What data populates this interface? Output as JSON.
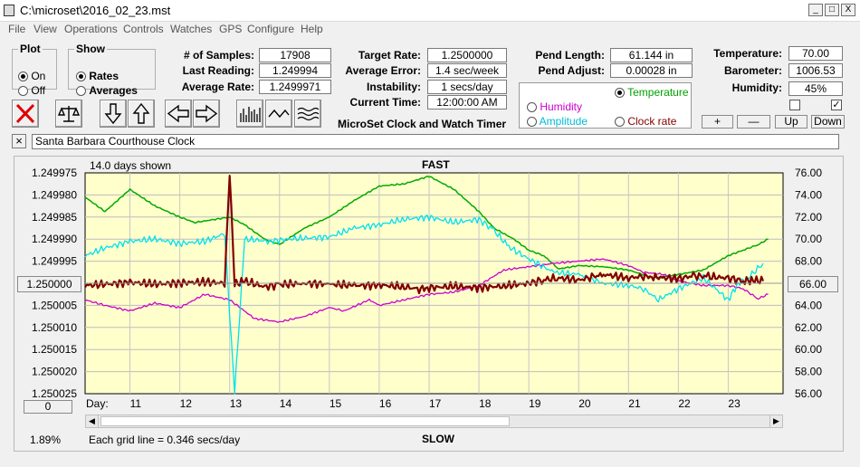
{
  "window": {
    "title": "C:\\microset\\2016_02_23.mst",
    "minimize": "_",
    "maximize": "□",
    "close": "X"
  },
  "menu": [
    "File",
    "View",
    "Operations",
    "Controls",
    "Watches",
    "GPS",
    "Configure",
    "Help"
  ],
  "plot": {
    "legend": "Plot",
    "on": "On",
    "off": "Off",
    "selected": "On"
  },
  "show": {
    "legend": "Show",
    "rates": "Rates",
    "averages": "Averages",
    "selected": "Rates"
  },
  "stats": {
    "samples_label": "# of Samples:",
    "samples": "17908",
    "last_label": "Last Reading:",
    "last": "1.249994",
    "avg_label": "Average Rate:",
    "avg": "1.2499971"
  },
  "targets": {
    "target_label": "Target Rate:",
    "target": "1.2500000",
    "error_label": "Average Error:",
    "error": "1.4 sec/week",
    "instab_label": "Instability:",
    "instab": "1 secs/day",
    "time_label": "Current Time:",
    "time": "12:00:00 AM",
    "caption": "MicroSet Clock and Watch Timer"
  },
  "pend": {
    "length_label": "Pend Length:",
    "length": "61.144 in",
    "adjust_label": "Pend Adjust:",
    "adjust": "0.00028 in"
  },
  "overlay": {
    "temperature": "Temperature",
    "humidity": "Humidity",
    "amplitude": "Amplitude",
    "clock_rate": "Clock rate",
    "selected": "Temperature"
  },
  "env": {
    "temp_label": "Temperature:",
    "temp": "70.00",
    "baro_label": "Barometer:",
    "baro": "1006.53",
    "hum_label": "Humidity:",
    "hum": "45%",
    "plus": "+",
    "minus": "—",
    "up": "Up",
    "down": "Down"
  },
  "clock_name": "Santa Barbara Courthouse Clock",
  "close_x": "×",
  "chart": {
    "days_shown": "14.0 days shown",
    "fast": "FAST",
    "slow": "SLOW",
    "grid_note": "Each grid line = 0.346 secs/day",
    "percent": "1.89%",
    "day_label": "Day:",
    "center_left": "1.250000",
    "center_right": "66.00",
    "zero_btn": "0"
  },
  "colors": {
    "plot_bg": "#ffffcc",
    "rate": "#800000",
    "temperature": "#00aa00",
    "humidity": "#cc00cc",
    "amplitude": "#00e0f0"
  },
  "chart_data": {
    "type": "line",
    "title": "",
    "xlabel": "Day:",
    "x_ticks": [
      11,
      12,
      13,
      14,
      15,
      16,
      17,
      18,
      19,
      20,
      21,
      22,
      23
    ],
    "x_range": [
      10.1,
      24.1
    ],
    "y_left_ticks": [
      "1.249975",
      "1.249980",
      "1.249985",
      "1.249990",
      "1.249995",
      "1.250000",
      "1.250005",
      "1.250010",
      "1.250015",
      "1.250020",
      "1.250025"
    ],
    "y_left_range": [
      1.249975,
      1.250025
    ],
    "y_right_ticks": [
      "76.00",
      "74.00",
      "72.00",
      "70.00",
      "68.00",
      "66.00",
      "64.00",
      "62.00",
      "60.00",
      "58.00",
      "56.00"
    ],
    "y_right_range": [
      56,
      76
    ],
    "series": [
      {
        "key": "rate",
        "axis": "left",
        "x": [
          10.1,
          10.5,
          11,
          11.5,
          12,
          12.5,
          12.9,
          13.0,
          13.1,
          13.3,
          13.7,
          14,
          14.5,
          15,
          15.5,
          16,
          16.5,
          16.8,
          17,
          17.5,
          18,
          18.5,
          19,
          19.3,
          19.6,
          20,
          20.3,
          20.5,
          21,
          21.3,
          21.5,
          22,
          22.3,
          22.6,
          23,
          23.3,
          23.5,
          23.7
        ],
        "y": [
          1.2500005,
          1.2500002,
          1.2499998,
          1.2500002,
          1.2499999,
          1.2499997,
          1.25,
          1.249975,
          1.2500002,
          1.2499995,
          1.2500008,
          1.2500003,
          1.25,
          1.2500002,
          1.2500005,
          1.2500004,
          1.2500008,
          1.2500013,
          1.250001,
          1.2500007,
          1.250001,
          1.2500006,
          1.25,
          1.2499992,
          1.2499988,
          1.2499993,
          1.2499985,
          1.249998,
          1.2499988,
          1.2499984,
          1.2499986,
          1.249999,
          1.2499983,
          1.2499985,
          1.2499988,
          1.2499995,
          1.2499993,
          1.2499995
        ]
      },
      {
        "key": "temperature",
        "axis": "right",
        "x": [
          10.1,
          10.5,
          11,
          11.5,
          12,
          12.3,
          13,
          13.3,
          13.7,
          14,
          14.5,
          15,
          15.5,
          16,
          16.5,
          17,
          17.5,
          18,
          18.3,
          18.7,
          19,
          19.3,
          19.6,
          20,
          20.5,
          21,
          21.5,
          22,
          22.5,
          23,
          23.3,
          23.6,
          23.8
        ],
        "y": [
          73.8,
          72.5,
          74.5,
          73.0,
          72.0,
          71.5,
          72.0,
          71.3,
          70.0,
          69.5,
          71.0,
          72.0,
          73.5,
          74.8,
          75.0,
          75.7,
          74.5,
          72.5,
          71.0,
          70.0,
          69.0,
          68.5,
          67.3,
          67.6,
          67.5,
          67.2,
          66.5,
          66.8,
          67.2,
          68.5,
          69.0,
          69.5,
          70.0
        ]
      },
      {
        "key": "humidity",
        "axis": "right",
        "x": [
          10.1,
          10.5,
          11,
          11.5,
          12,
          12.5,
          13,
          13.5,
          14,
          14.5,
          15,
          15.3,
          15.8,
          16,
          16.5,
          17,
          17.5,
          18,
          18.5,
          19,
          19.5,
          20,
          20.5,
          21,
          21.3,
          21.7,
          22,
          22.5,
          23,
          23.3,
          23.6,
          23.8
        ],
        "y": [
          64.5,
          64.0,
          63.5,
          64.2,
          63.8,
          65.0,
          64.5,
          62.8,
          62.5,
          63.0,
          63.8,
          63.5,
          64.5,
          64.0,
          64.5,
          65.0,
          65.2,
          65.8,
          67.2,
          67.5,
          67.8,
          68.0,
          68.2,
          67.6,
          67.0,
          66.8,
          66.2,
          65.8,
          65.8,
          65.5,
          64.6,
          65.0
        ]
      },
      {
        "key": "amplitude",
        "axis": "right",
        "x": [
          10.1,
          10.5,
          11,
          11.5,
          12,
          12.5,
          12.9,
          13.1,
          13.3,
          13.8,
          14.2,
          15,
          15.5,
          16,
          16.5,
          17,
          17.5,
          18,
          18.3,
          18.6,
          19,
          19.5,
          20,
          20.5,
          21,
          21.3,
          21.6,
          22,
          22.5,
          23,
          23.2,
          23.4,
          23.7
        ],
        "y": [
          68.5,
          69.2,
          69.8,
          70.0,
          69.6,
          69.8,
          70.5,
          56.0,
          70.0,
          69.8,
          70.0,
          70.2,
          71.0,
          71.3,
          71.8,
          72.0,
          71.5,
          71.8,
          70.8,
          69.3,
          68.2,
          67.0,
          66.8,
          66.0,
          65.8,
          65.5,
          64.5,
          65.5,
          66.5,
          64.5,
          66.0,
          66.5,
          67.8
        ]
      }
    ]
  }
}
